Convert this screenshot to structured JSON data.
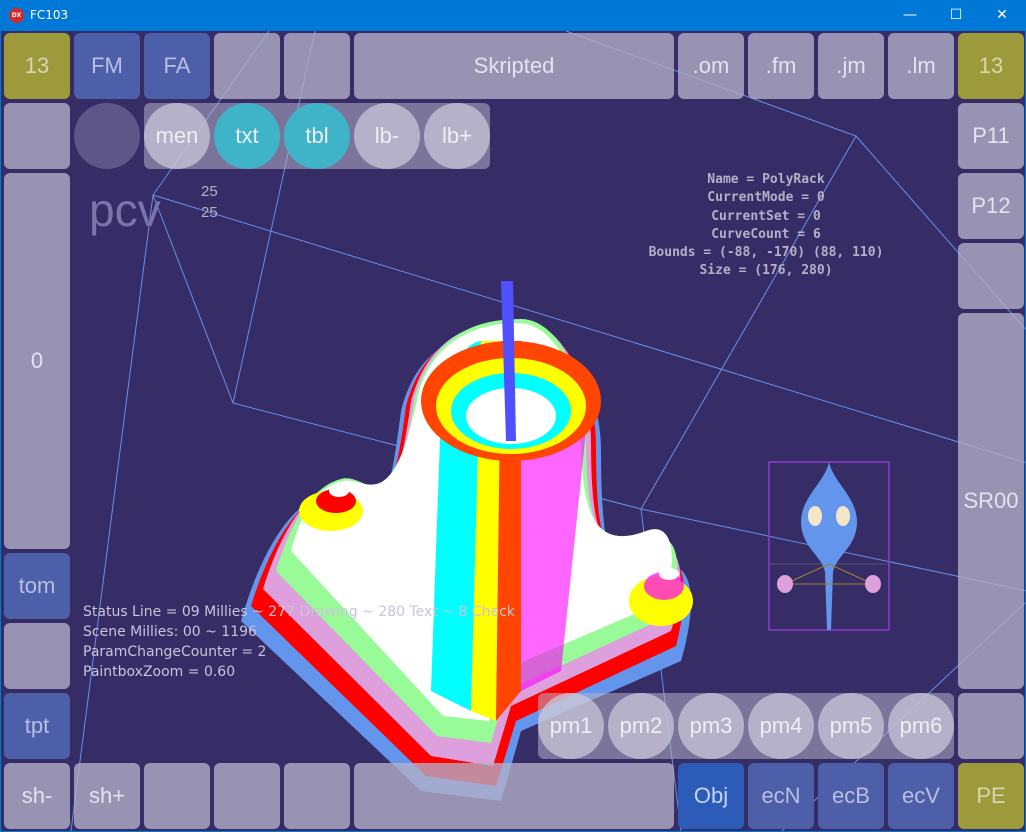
{
  "window": {
    "title": "FC103",
    "app_icon": "DX",
    "minimize": "—",
    "maximize": "☐",
    "close": "✕"
  },
  "top_row": [
    "13",
    "FM",
    "FA",
    "",
    "",
    "Skripted",
    ".om",
    ".fm",
    ".jm",
    ".lm",
    "13"
  ],
  "second_row": {
    "circles": [
      "",
      "men",
      "txt",
      "tbl",
      "lb-",
      "lb+"
    ]
  },
  "left_column": {
    "blank1": "",
    "zero": "0",
    "tom": "tom",
    "blank2": "",
    "tpt": "tpt"
  },
  "right_column": {
    "p11": "P11",
    "p12": "P12",
    "blank": "",
    "sr00": "SR00",
    "blank2": ""
  },
  "bottom_row": [
    "sh-",
    "sh+",
    "",
    "",
    "",
    "",
    "Obj",
    "ecN",
    "ecB",
    "ecV",
    "PE"
  ],
  "pm_row": [
    "pm1",
    "pm2",
    "pm3",
    "pm4",
    "pm5",
    "pm6"
  ],
  "canvas": {
    "title": "pcv",
    "num1": "25",
    "num2": "25"
  },
  "info": [
    "Name = PolyRack",
    "CurrentMode = 0",
    "CurrentSet = 0",
    "CurveCount = 6",
    "Bounds = (-88, -170) (88, 110)",
    "Size = (176, 280)"
  ],
  "status": [
    "Status Line = 09 Millies ~ 277 Drawing ~ 280 Text ~ 8 Check",
    "Scene Millies: 00 ~ 1196",
    "ParamChangeCounter = 2",
    "PaintboxZoom = 0.60"
  ],
  "colors": {
    "background": "#372d66",
    "titlebar": "#0078d7",
    "olive": "#9c9a3a",
    "blue": "#4c5fa8",
    "cyan": "#3fb4c8",
    "stripes": [
      "#6495ed",
      "#ff0000",
      "#dda0dd",
      "#98fb98",
      "#ffffff",
      "#00ffff",
      "#ffff00",
      "#ff4500"
    ]
  }
}
